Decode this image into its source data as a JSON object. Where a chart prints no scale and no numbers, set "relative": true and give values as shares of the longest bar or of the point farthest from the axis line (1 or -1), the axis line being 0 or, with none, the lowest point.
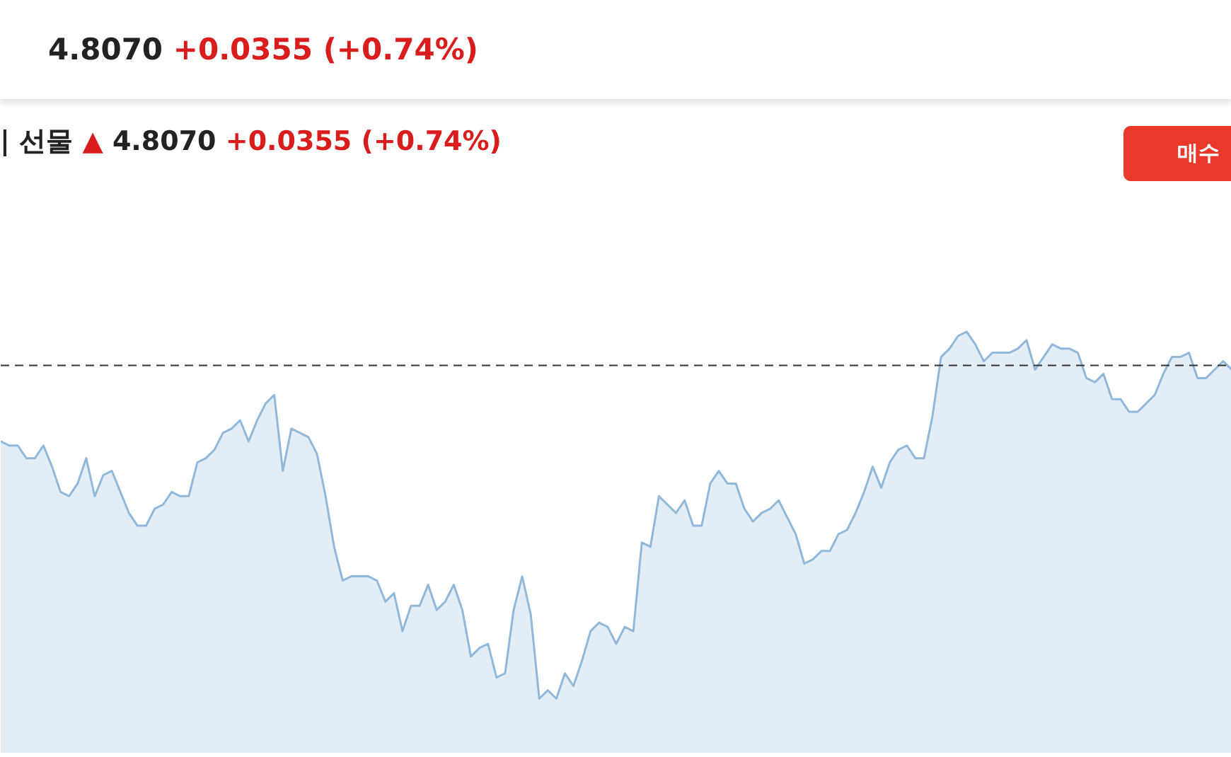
{
  "chart_data": {
    "type": "area",
    "relative": true,
    "title": "4.8070 +0.0355 (+0.74%)",
    "subtitle": "| 선물 ▲ 4.8070 +0.0355 (+0.74%)",
    "annotations": [
      "매수"
    ],
    "categories": [
      null,
      null,
      null,
      null,
      null,
      null,
      null,
      null,
      null,
      null,
      null,
      null,
      null,
      null,
      null,
      null,
      null,
      null,
      null,
      null,
      null,
      null,
      null,
      null,
      null,
      null,
      null,
      null,
      null,
      null,
      null,
      null,
      null,
      null,
      null,
      null,
      null,
      null,
      null,
      null,
      null,
      null,
      null,
      null,
      null,
      null,
      null,
      null,
      null,
      null,
      null,
      null,
      null,
      null,
      null,
      null,
      null,
      null,
      null,
      null,
      null,
      null,
      null,
      null,
      null,
      null,
      null,
      null,
      null,
      null,
      null,
      null,
      null,
      null,
      null,
      null,
      null,
      null,
      null,
      null,
      null,
      null,
      null,
      null,
      null,
      null,
      null,
      null,
      null,
      null,
      null,
      null,
      null,
      null,
      null,
      null,
      null,
      null,
      null,
      null,
      null,
      null,
      null,
      null,
      null,
      null,
      null,
      null,
      null,
      null,
      null,
      null,
      null,
      null,
      null,
      null,
      null,
      null,
      null,
      null,
      null,
      null,
      null,
      null,
      null,
      null,
      null,
      null,
      null,
      null,
      null,
      null,
      null,
      null,
      null,
      null,
      null,
      null,
      null,
      null,
      null,
      null,
      null,
      null,
      null
    ],
    "series": [
      {
        "color": "#8fb8db",
        "values": [
          0.74,
          0.73,
          0.73,
          0.7,
          0.7,
          0.73,
          0.68,
          0.62,
          0.61,
          0.64,
          0.7,
          0.61,
          0.66,
          0.67,
          0.62,
          0.57,
          0.54,
          0.54,
          0.58,
          0.59,
          0.62,
          0.61,
          0.61,
          0.69,
          0.7,
          0.72,
          0.76,
          0.77,
          0.79,
          0.74,
          0.79,
          0.83,
          0.85,
          0.67,
          0.77,
          0.76,
          0.75,
          0.71,
          0.61,
          0.49,
          0.41,
          0.42,
          0.42,
          0.42,
          0.41,
          0.36,
          0.38,
          0.29,
          0.35,
          0.35,
          0.4,
          0.34,
          0.36,
          0.4,
          0.34,
          0.23,
          0.25,
          0.26,
          0.18,
          0.19,
          0.34,
          0.42,
          0.33,
          0.13,
          0.15,
          0.13,
          0.19,
          0.16,
          0.22,
          0.29,
          0.31,
          0.3,
          0.26,
          0.3,
          0.29,
          0.5,
          0.49,
          0.61,
          0.59,
          0.57,
          0.6,
          0.54,
          0.54,
          0.64,
          0.67,
          0.64,
          0.64,
          0.58,
          0.55,
          0.57,
          0.58,
          0.6,
          0.56,
          0.52,
          0.45,
          0.46,
          0.48,
          0.48,
          0.52,
          0.53,
          0.57,
          0.62,
          0.68,
          0.63,
          0.69,
          0.72,
          0.73,
          0.7,
          0.7,
          0.8,
          0.94,
          0.96,
          0.99,
          1,
          0.97,
          0.93,
          0.95,
          0.95,
          0.95,
          0.96,
          0.98,
          0.91,
          0.94,
          0.97,
          0.96,
          0.96,
          0.95,
          0.89,
          0.88,
          0.9,
          0.84,
          0.84,
          0.81,
          0.81,
          0.83,
          0.85,
          0.9,
          0.94,
          0.94,
          0.95,
          0.89,
          0.89,
          0.91,
          0.93,
          0.91
        ]
      }
    ],
    "ref_lines": [
      {
        "axis": "y",
        "value": 0.92,
        "color": "#333333",
        "line_style": "dashed"
      }
    ]
  }
}
